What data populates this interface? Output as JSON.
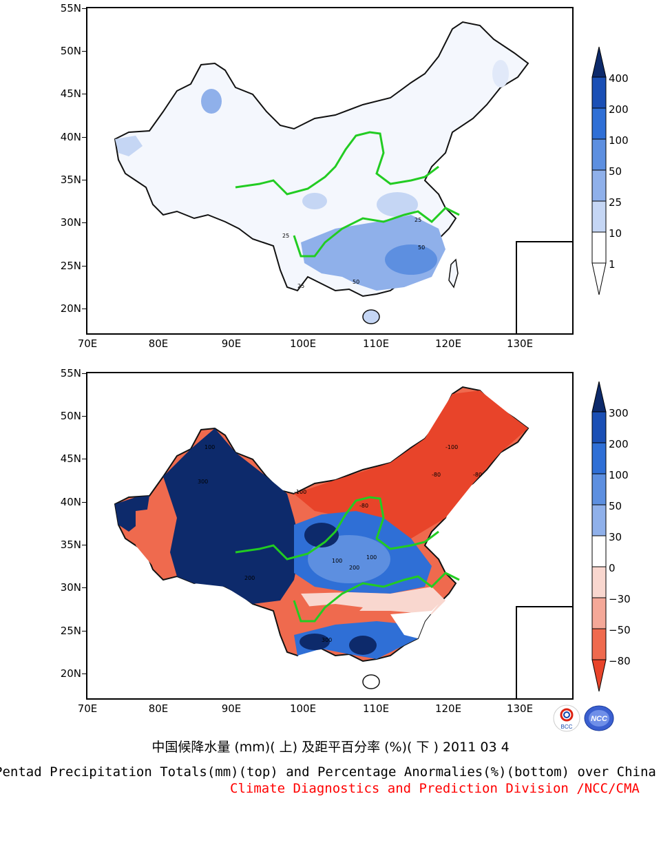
{
  "top_panel": {
    "lat_labels": [
      "55N",
      "50N",
      "45N",
      "40N",
      "35N",
      "30N",
      "25N",
      "20N"
    ],
    "lon_labels": [
      "70E",
      "80E",
      "90E",
      "100E",
      "110E",
      "120E",
      "130E"
    ],
    "colorbar": {
      "levels": [
        "400",
        "200",
        "100",
        "50",
        "25",
        "10",
        "1"
      ],
      "colors": [
        "#0d2a6b",
        "#1a4fb5",
        "#2f6fd6",
        "#5d8fe0",
        "#8fb0ea",
        "#c5d6f4",
        "#ffffff"
      ]
    },
    "contour_labels": [
      "25",
      "25",
      "25",
      "50",
      "50"
    ]
  },
  "bottom_panel": {
    "lat_labels": [
      "55N",
      "50N",
      "45N",
      "40N",
      "35N",
      "30N",
      "25N",
      "20N"
    ],
    "lon_labels": [
      "70E",
      "80E",
      "90E",
      "100E",
      "110E",
      "120E",
      "130E"
    ],
    "colorbar": {
      "levels": [
        "300",
        "200",
        "100",
        "50",
        "30",
        "0",
        "−30",
        "−50",
        "−80"
      ],
      "colors": [
        "#0d2a6b",
        "#1a4fb5",
        "#2f6fd6",
        "#5d8fe0",
        "#8fb0ea",
        "#ffffff",
        "#f9d7cf",
        "#f4a898",
        "#ef6a4e",
        "#e8442a"
      ]
    },
    "contour_labels": [
      "-100",
      "-80",
      "100",
      "300",
      "200",
      "100",
      "-100",
      "-80",
      "-80",
      "100",
      "200",
      "300"
    ]
  },
  "title_cn": "中国候降水量 (mm)( 上) 及距平百分率 (%)( 下 ) 2011 03 4",
  "title_en": "Pentad Precipitation Totals(mm)(top) and Percentage Anormalies(%)(bottom) over China",
  "credit": "Climate Diagnostics and Prediction Division /NCC/CMA",
  "logos": [
    "BCC",
    "NCC"
  ]
}
